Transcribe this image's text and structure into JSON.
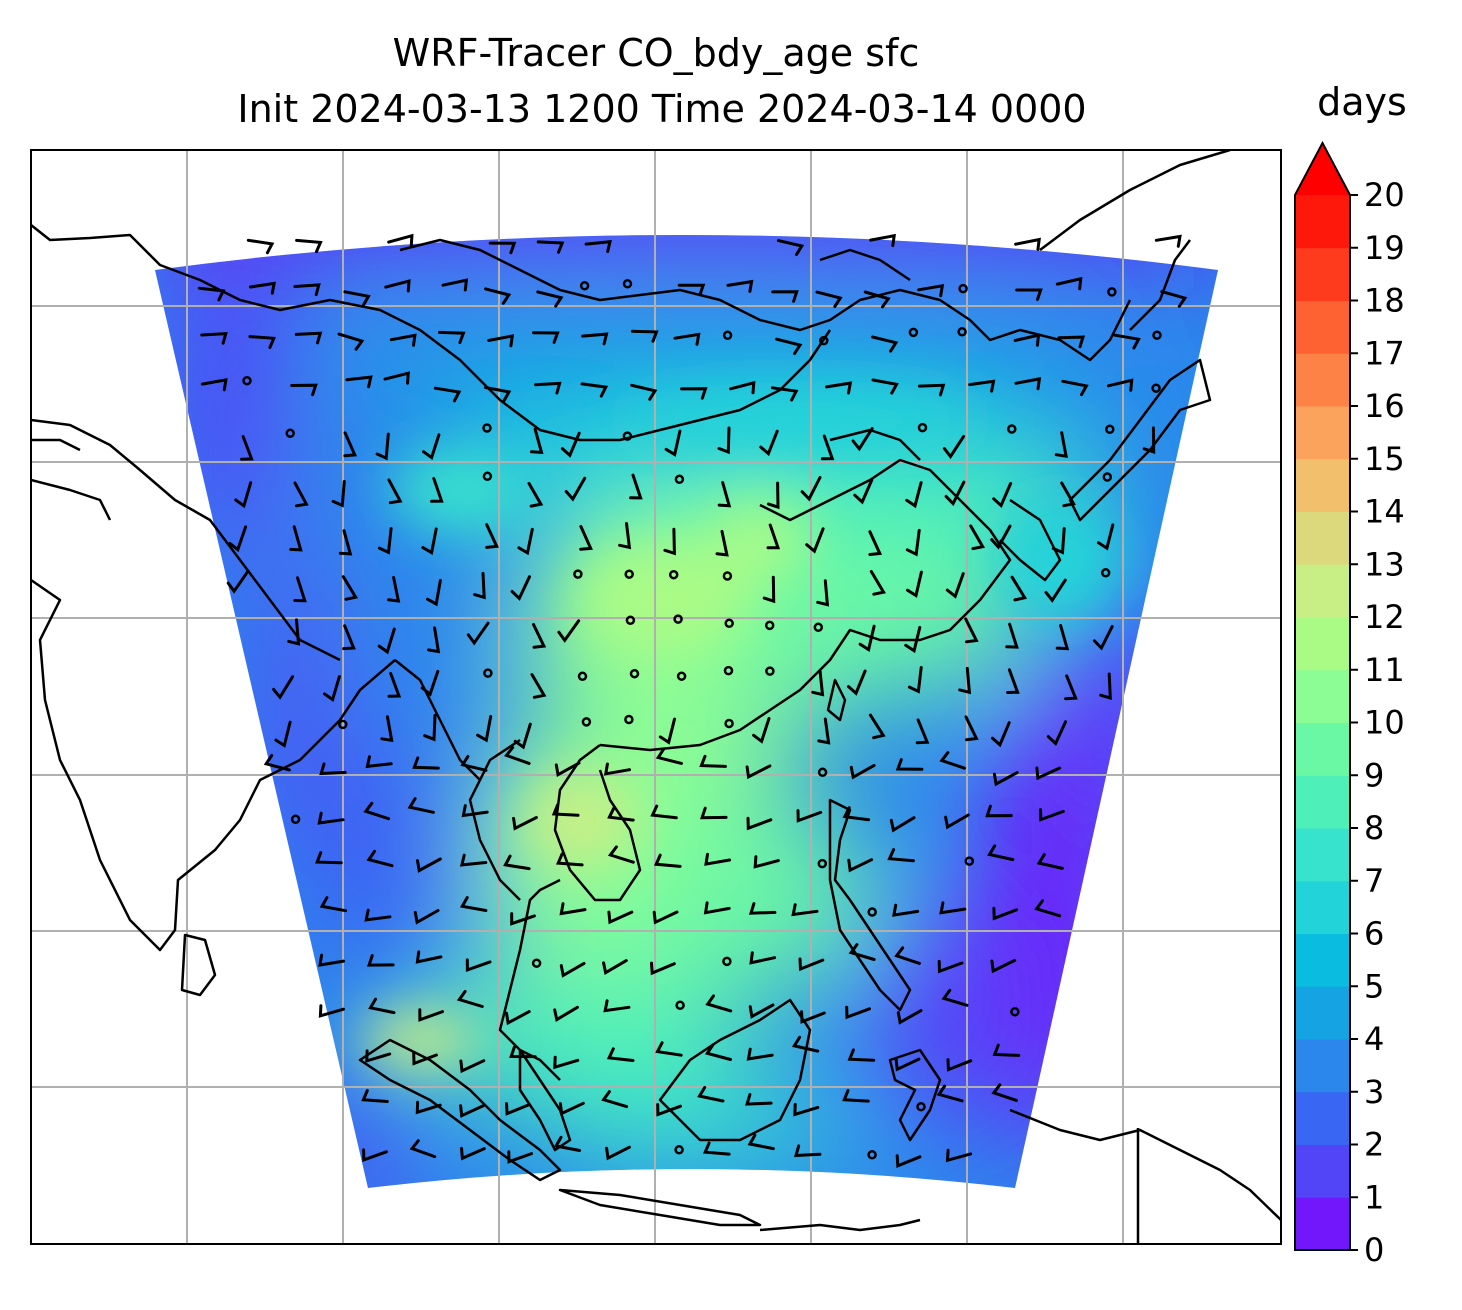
{
  "title_line1": "WRF-Tracer CO_bdy_age sfc",
  "title_line2": "Init 2024-03-13 1200 Time 2024-03-14 0000",
  "colorbar": {
    "unit_label": "days",
    "ticks": [
      "0",
      "1",
      "2",
      "3",
      "4",
      "5",
      "6",
      "7",
      "8",
      "9",
      "10",
      "11",
      "12",
      "13",
      "14",
      "15",
      "16",
      "17",
      "18",
      "19",
      "20"
    ],
    "extend": "max",
    "colors": [
      "#7216fb",
      "#5245f8",
      "#3a66f4",
      "#2b87ec",
      "#15a3e4",
      "#0abce0",
      "#22d4d9",
      "#37e3cc",
      "#4eefb8",
      "#6bf8a5",
      "#8cfd94",
      "#aafb86",
      "#c8ef86",
      "#dcd87c",
      "#f2c06c",
      "#fba25d",
      "#fd8246",
      "#fe6132",
      "#fe3b1d",
      "#fe180c"
    ],
    "overflow_color": "#ff0000"
  },
  "map": {
    "field": "CO_bdy_age",
    "level": "sfc",
    "gridlines": true,
    "coastlines": true,
    "wind_barbs": true
  }
}
